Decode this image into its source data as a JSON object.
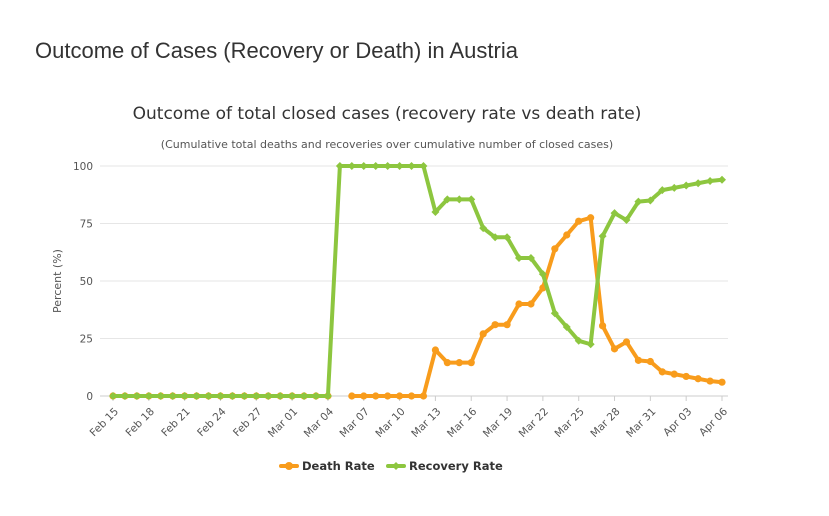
{
  "page": {
    "heading": "Outcome of Cases (Recovery or Death) in Austria"
  },
  "chart_data": {
    "type": "line",
    "title": "Outcome of total closed cases (recovery rate vs death rate)",
    "subtitle": "(Cumulative total deaths and recoveries over cumulative number of closed cases)",
    "xlabel": "",
    "ylabel": "Percent (%)",
    "ylim": [
      0,
      100
    ],
    "yticks": [
      0,
      25,
      50,
      75,
      100
    ],
    "grid": true,
    "legend_position": "bottom-center",
    "categories": [
      "Feb 15",
      "Feb 16",
      "Feb 17",
      "Feb 18",
      "Feb 19",
      "Feb 20",
      "Feb 21",
      "Feb 22",
      "Feb 23",
      "Feb 24",
      "Feb 25",
      "Feb 26",
      "Feb 27",
      "Feb 28",
      "Feb 29",
      "Mar 01",
      "Mar 02",
      "Mar 03",
      "Mar 04",
      "Mar 05",
      "Mar 06",
      "Mar 07",
      "Mar 08",
      "Mar 09",
      "Mar 10",
      "Mar 11",
      "Mar 12",
      "Mar 13",
      "Mar 14",
      "Mar 15",
      "Mar 16",
      "Mar 17",
      "Mar 18",
      "Mar 19",
      "Mar 20",
      "Mar 21",
      "Mar 22",
      "Mar 23",
      "Mar 24",
      "Mar 25",
      "Mar 26",
      "Mar 27",
      "Mar 28",
      "Mar 29",
      "Mar 30",
      "Mar 31",
      "Apr 01",
      "Apr 02",
      "Apr 03",
      "Apr 04",
      "Apr 05",
      "Apr 06"
    ],
    "tick_labels": [
      "Feb 15",
      "Feb 18",
      "Feb 21",
      "Feb 24",
      "Feb 27",
      "Mar 01",
      "Mar 04",
      "Mar 07",
      "Mar 10",
      "Mar 13",
      "Mar 16",
      "Mar 19",
      "Mar 22",
      "Mar 25",
      "Mar 28",
      "Mar 31",
      "Apr 03",
      "Apr 06"
    ],
    "series": [
      {
        "name": "Death Rate",
        "color": "#f89c1c",
        "values": [
          0,
          0,
          0,
          0,
          0,
          0,
          0,
          0,
          0,
          0,
          0,
          0,
          0,
          0,
          0,
          0,
          0,
          0,
          0,
          null,
          0,
          0,
          0,
          0,
          0,
          0,
          0,
          20,
          14.5,
          14.5,
          14.5,
          27,
          31,
          31,
          40,
          40,
          47,
          64,
          70,
          76,
          77.5,
          30.5,
          20.5,
          23.5,
          15.5,
          15,
          10.5,
          9.5,
          8.5,
          7.5,
          6.5,
          6
        ]
      },
      {
        "name": "Recovery Rate",
        "color": "#8dc63f",
        "values": [
          0,
          0,
          0,
          0,
          0,
          0,
          0,
          0,
          0,
          0,
          0,
          0,
          0,
          0,
          0,
          0,
          0,
          0,
          0,
          100,
          100,
          100,
          100,
          100,
          100,
          100,
          100,
          80,
          85.5,
          85.5,
          85.5,
          73,
          69,
          69,
          60,
          60,
          53,
          36,
          30,
          24,
          22.5,
          69.5,
          79.5,
          76.5,
          84.5,
          85,
          89.5,
          90.5,
          91.5,
          92.5,
          93.5,
          94
        ]
      }
    ]
  }
}
